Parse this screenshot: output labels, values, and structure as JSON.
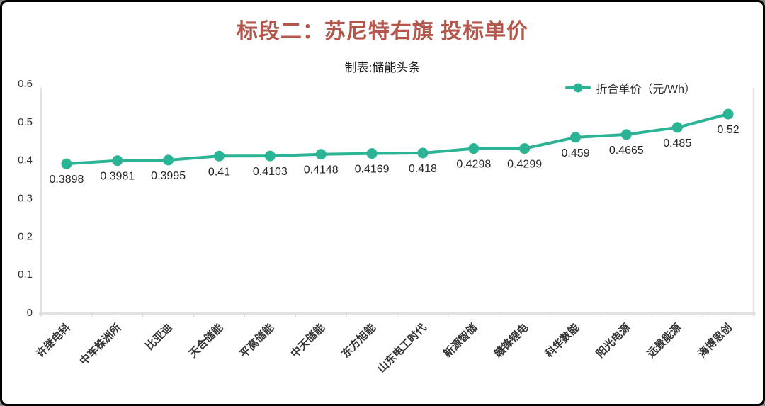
{
  "window": {
    "background": "#ffffff",
    "frame_border_color": "#000000"
  },
  "header": {
    "title": "标段二：苏尼特右旗 投标单价",
    "title_color": "#b5564c",
    "subtitle": "制表:储能头条"
  },
  "legend": {
    "label": "折合单价（元/Wh）",
    "marker_color": "#2ab394"
  },
  "chart_data": {
    "type": "line",
    "title": "标段二：苏尼特右旗 投标单价",
    "subtitle": "制表:储能头条",
    "legend": [
      "折合单价（元/Wh）"
    ],
    "legend_position": "top-right",
    "categories": [
      "许继电科",
      "中车株洲所",
      "比亚迪",
      "天合储能",
      "平高储能",
      "中天储能",
      "东方旭能",
      "山东电工时代",
      "新源智储",
      "赣锋锂电",
      "科华数能",
      "阳光电源",
      "远景能源",
      "海博思创"
    ],
    "values": [
      0.3898,
      0.3981,
      0.3995,
      0.41,
      0.4103,
      0.4148,
      0.4169,
      0.418,
      0.4298,
      0.4299,
      0.459,
      0.4665,
      0.485,
      0.52
    ],
    "value_labels": [
      "0.3898",
      "0.3981",
      "0.3995",
      "0.41",
      "0.4103",
      "0.4148",
      "0.4169",
      "0.418",
      "0.4298",
      "0.4299",
      "0.459",
      "0.4665",
      "0.485",
      "0.52"
    ],
    "xlabel": "",
    "ylabel": "",
    "ylim": [
      0,
      0.6
    ],
    "yticks": [
      0,
      0.1,
      0.2,
      0.3,
      0.4,
      0.5,
      0.6
    ],
    "ytick_labels": [
      "0",
      "0.1",
      "0.2",
      "0.3",
      "0.4",
      "0.5",
      "0.6"
    ],
    "grid": false,
    "line_color": "#2ab394",
    "axis_color": "#e2e2e2",
    "tick_color": "#d9d9d9",
    "axis_label_color": "#333333",
    "data_label_color": "#262626"
  }
}
